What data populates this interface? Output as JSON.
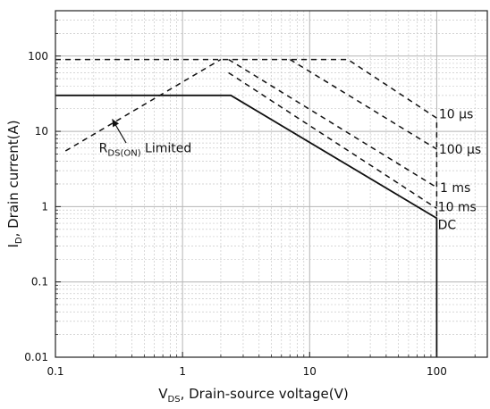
{
  "chart_data": {
    "type": "line",
    "title": "",
    "x_scale": "log",
    "y_scale": "log",
    "xlim": [
      0.1,
      250
    ],
    "ylim": [
      0.01,
      400
    ],
    "grid": true,
    "x_ticks": [
      0.1,
      1,
      10,
      100
    ],
    "x_tick_labels": [
      "0.1",
      "1",
      "10",
      "100"
    ],
    "y_ticks": [
      0.01,
      0.1,
      1,
      10,
      100
    ],
    "y_tick_labels": [
      "0.01",
      "0.1",
      "1",
      "10",
      "100"
    ],
    "xlabel": {
      "main": "V",
      "sub": "DS",
      "rest": ", Drain-source voltage(V)"
    },
    "ylabel": {
      "main": "I",
      "sub": "D",
      "rest": ", Drain current(A)"
    },
    "series": [
      {
        "name": "10 µs",
        "style": "dashed",
        "x": [
          0.1,
          20,
          100,
          100
        ],
        "y": [
          90,
          90,
          15,
          0.7
        ]
      },
      {
        "name": "100 µs",
        "style": "dashed",
        "x": [
          7,
          100
        ],
        "y": [
          90,
          5.8
        ]
      },
      {
        "name": "1 ms",
        "style": "dashed",
        "x": [
          2.3,
          100
        ],
        "y": [
          90,
          1.8
        ]
      },
      {
        "name": "10 ms",
        "style": "dashed",
        "x": [
          2.3,
          100
        ],
        "y": [
          60,
          0.95
        ]
      },
      {
        "name": "DC",
        "style": "solid",
        "x": [
          0.1,
          2.4,
          100,
          100
        ],
        "y": [
          30,
          30,
          0.7,
          0.01
        ]
      },
      {
        "name": "",
        "style": "dashed",
        "x": [
          0.12,
          2.0
        ],
        "y": [
          5.5,
          90
        ]
      }
    ],
    "annotations": [
      {
        "text_main": "R",
        "text_sub": "DS(ON)",
        "text_rest": " Limited",
        "x": 0.22,
        "y": 5.3,
        "arrow_to": [
          0.28,
          14.5
        ],
        "arrow_from": [
          0.36,
          7
        ]
      },
      {
        "text": "10 µs",
        "x": 104,
        "y": 17
      },
      {
        "text": "100 µs",
        "x": 104,
        "y": 5.8
      },
      {
        "text": "1 ms",
        "x": 106,
        "y": 1.8
      },
      {
        "text": "10 ms",
        "x": 102,
        "y": 1.0
      },
      {
        "text": "DC",
        "x": 102,
        "y": 0.58
      }
    ]
  }
}
